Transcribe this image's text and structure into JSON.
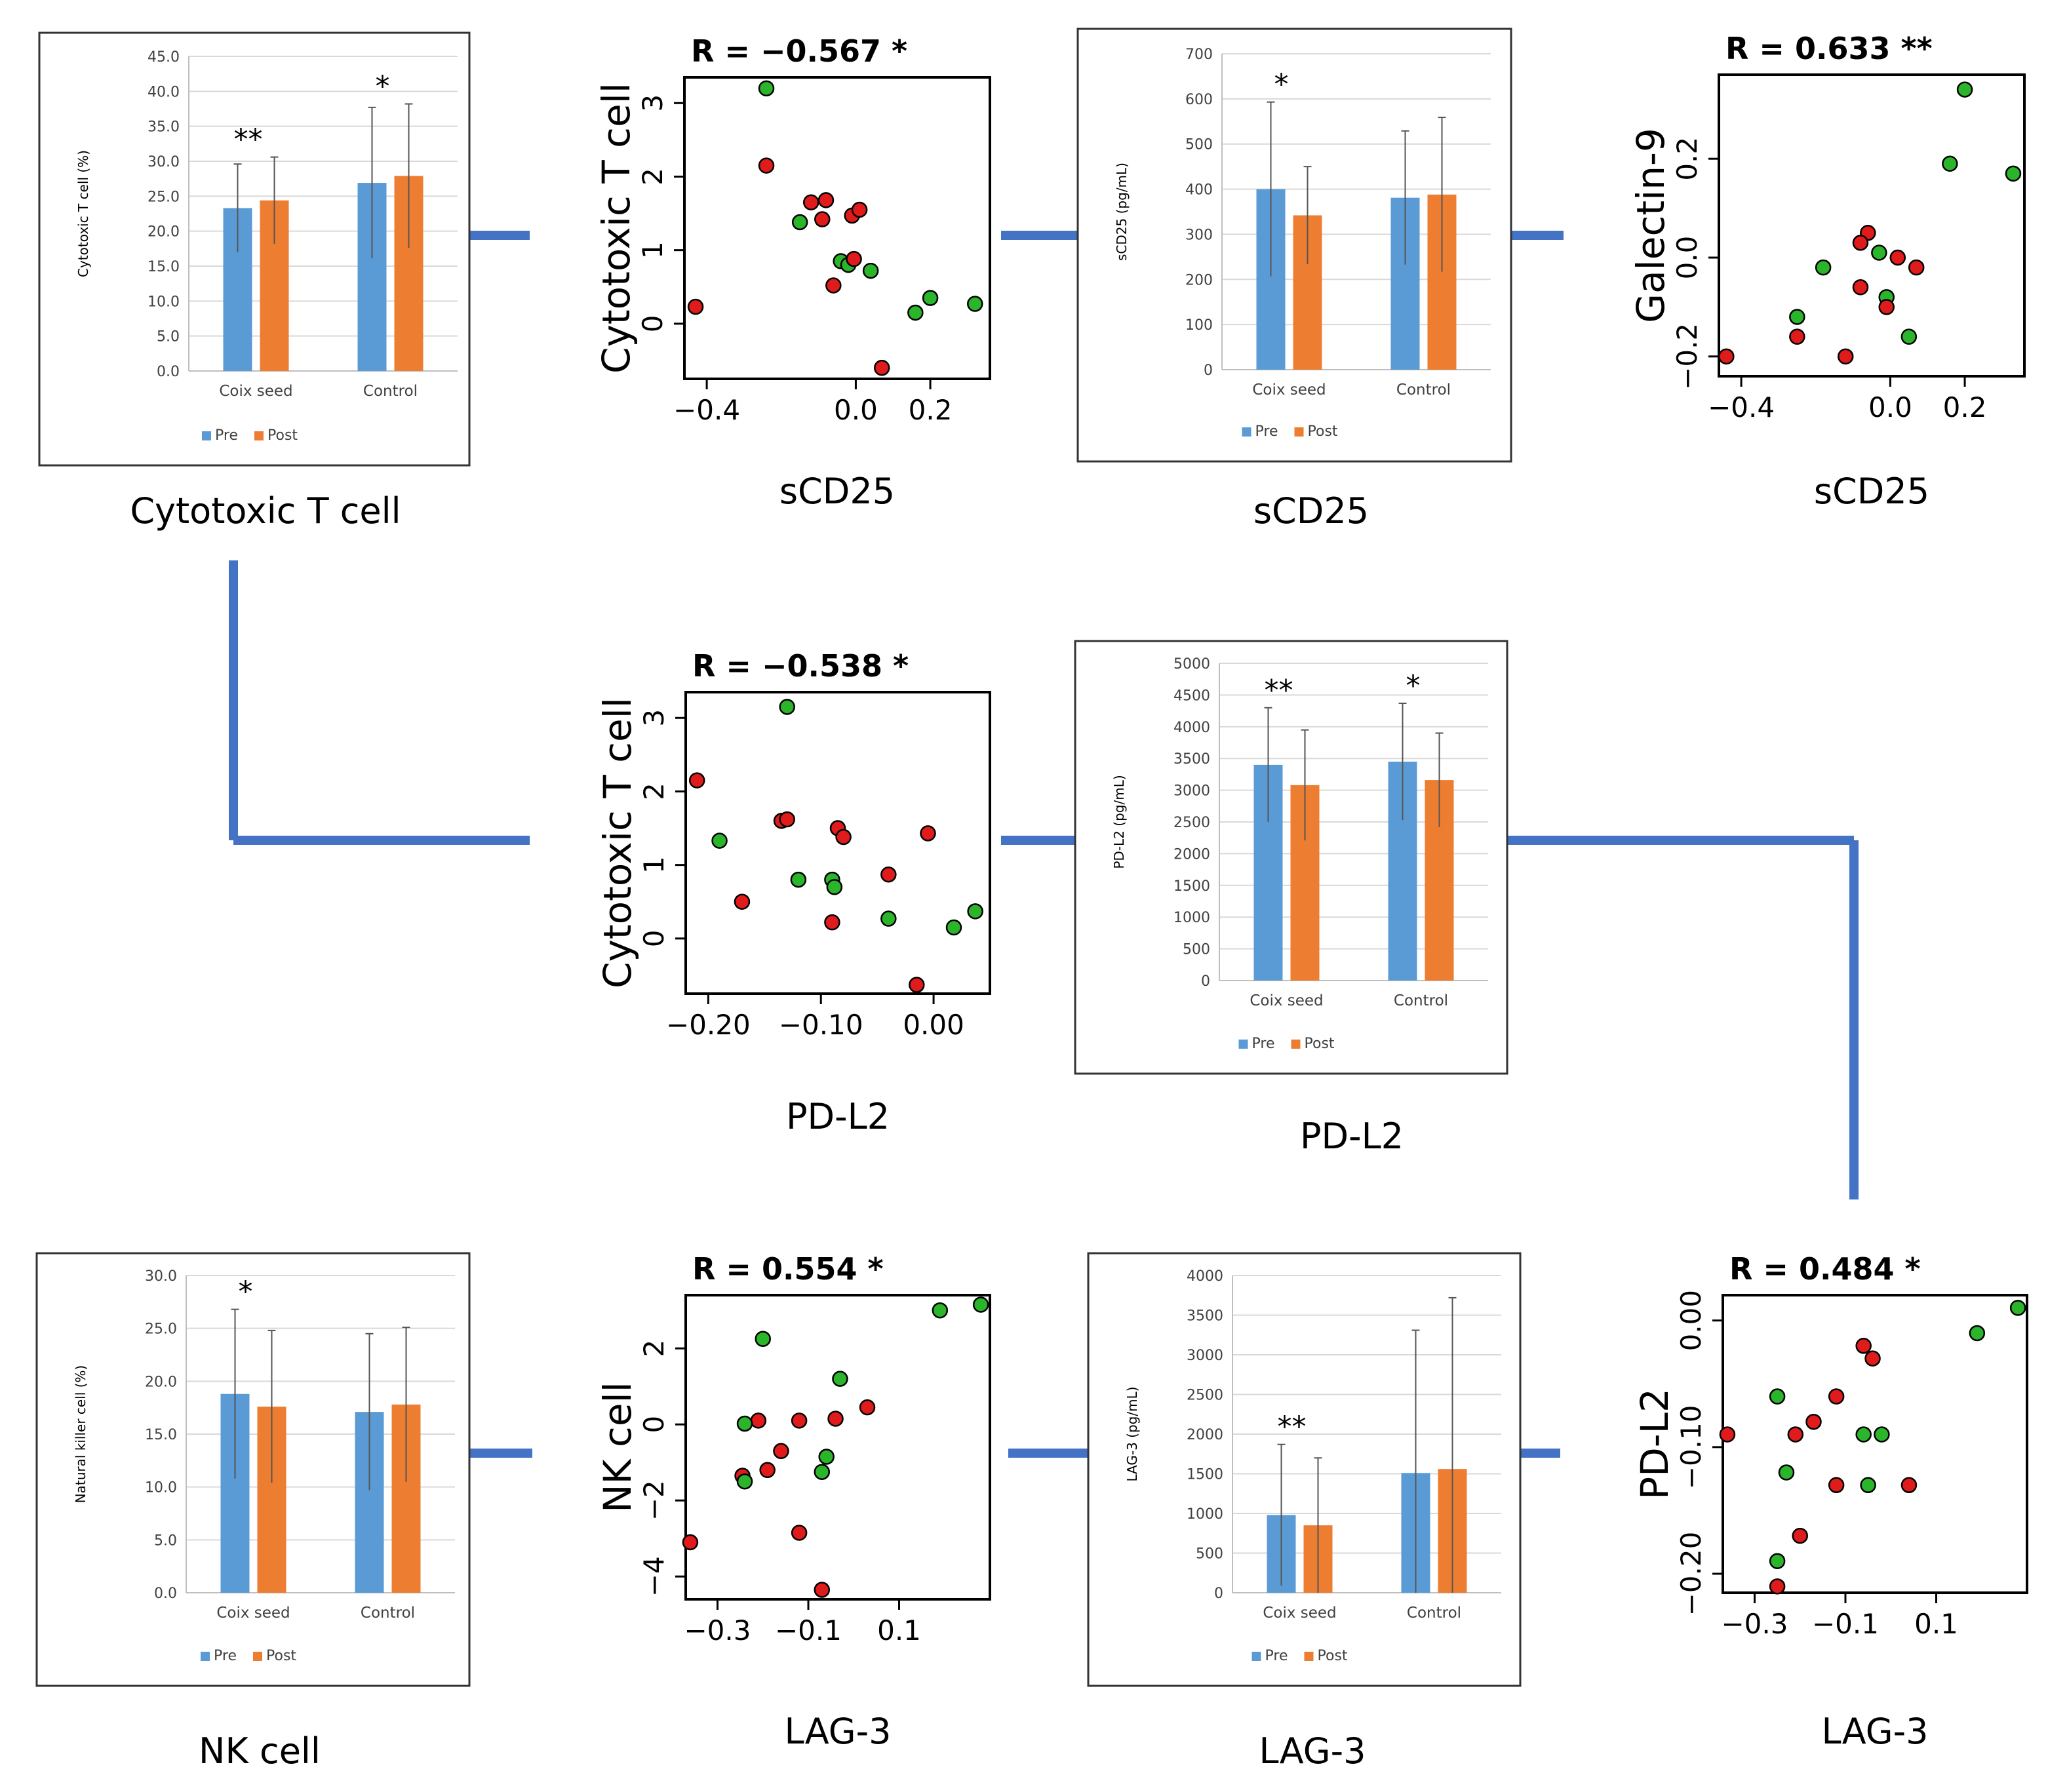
{
  "colors": {
    "connector": "#4472C4",
    "pre": "#5B9BD5",
    "post": "#ED7D31",
    "improved": "#2BB52B",
    "worsened": "#E01B1B",
    "gridline": "#D9D9D9",
    "border": "#333333"
  },
  "legend": {
    "pre": "Pre",
    "post": "Post"
  },
  "chart_data": [
    {
      "id": "bar-ctl",
      "type": "bar",
      "caption": "Cytotoxic T cell",
      "ylabel": "Cytotoxic T cell (%)",
      "categories": [
        "Coix seed",
        "Control"
      ],
      "ylim": [
        0,
        45
      ],
      "ticks": [
        "0.0",
        "5.0",
        "10.0",
        "15.0",
        "20.0",
        "25.0",
        "30.0",
        "35.0",
        "40.0",
        "45.0"
      ],
      "series": [
        {
          "name": "Pre",
          "values": [
            23.3,
            26.9
          ],
          "err": [
            6.3,
            10.8
          ]
        },
        {
          "name": "Post",
          "values": [
            24.4,
            27.9
          ],
          "err": [
            6.2,
            10.3
          ]
        }
      ],
      "significance": [
        "**",
        "*"
      ]
    },
    {
      "id": "scat-ctl-scd25",
      "type": "scatter",
      "title": "R = −0.567 *",
      "xlabel": "sCD25",
      "ylabel": "Cytotoxic T cell",
      "xlim": [
        -0.46,
        0.36
      ],
      "ylim": [
        -0.75,
        3.35
      ],
      "xticks": [
        "-0.4",
        "0.0",
        "0.2"
      ],
      "yticks": [
        "0",
        "1",
        "2",
        "3"
      ],
      "points": [
        {
          "x": -0.24,
          "y": 3.2,
          "g": 1
        },
        {
          "x": -0.24,
          "y": 2.15,
          "g": 0
        },
        {
          "x": -0.12,
          "y": 1.65,
          "g": 0
        },
        {
          "x": -0.08,
          "y": 1.68,
          "g": 0
        },
        {
          "x": -0.09,
          "y": 1.42,
          "g": 0
        },
        {
          "x": -0.15,
          "y": 1.38,
          "g": 1
        },
        {
          "x": -0.01,
          "y": 1.47,
          "g": 0
        },
        {
          "x": 0.01,
          "y": 1.55,
          "g": 0
        },
        {
          "x": -0.04,
          "y": 0.85,
          "g": 1
        },
        {
          "x": -0.02,
          "y": 0.8,
          "g": 1
        },
        {
          "x": -0.005,
          "y": 0.88,
          "g": 0
        },
        {
          "x": -0.06,
          "y": 0.52,
          "g": 0
        },
        {
          "x": 0.04,
          "y": 0.72,
          "g": 1
        },
        {
          "x": 0.16,
          "y": 0.15,
          "g": 1
        },
        {
          "x": 0.2,
          "y": 0.35,
          "g": 1
        },
        {
          "x": 0.32,
          "y": 0.27,
          "g": 1
        },
        {
          "x": 0.07,
          "y": -0.6,
          "g": 0
        },
        {
          "x": -0.43,
          "y": 0.23,
          "g": 0
        }
      ]
    },
    {
      "id": "bar-scd25",
      "type": "bar",
      "caption": "sCD25",
      "ylabel": "sCD25 (pg/mL)",
      "categories": [
        "Coix seed",
        "Control"
      ],
      "ylim": [
        0,
        700
      ],
      "ticks": [
        "0",
        "100",
        "200",
        "300",
        "400",
        "500",
        "600",
        "700"
      ],
      "series": [
        {
          "name": "Pre",
          "values": [
            400,
            381
          ],
          "err": [
            193,
            148
          ]
        },
        {
          "name": "Post",
          "values": [
            342,
            388
          ],
          "err": [
            108,
            171
          ]
        }
      ],
      "significance": [
        "*",
        ""
      ]
    },
    {
      "id": "scat-gal9-scd25",
      "type": "scatter",
      "title": "R = 0.633 **",
      "xlabel": "sCD25",
      "ylabel": "Galectin-9",
      "xlim": [
        -0.46,
        0.36
      ],
      "ylim": [
        -0.24,
        0.37
      ],
      "xticks": [
        "-0.4",
        "0.0",
        "0.2"
      ],
      "yticks": [
        "-0.2",
        "0.0",
        "0.2"
      ],
      "points": [
        {
          "x": 0.2,
          "y": 0.34,
          "g": 1
        },
        {
          "x": 0.16,
          "y": 0.19,
          "g": 1
        },
        {
          "x": 0.33,
          "y": 0.17,
          "g": 1
        },
        {
          "x": -0.06,
          "y": 0.05,
          "g": 0
        },
        {
          "x": -0.08,
          "y": 0.03,
          "g": 0
        },
        {
          "x": -0.03,
          "y": 0.01,
          "g": 1
        },
        {
          "x": 0.02,
          "y": 0.0,
          "g": 0
        },
        {
          "x": 0.07,
          "y": -0.02,
          "g": 0
        },
        {
          "x": -0.18,
          "y": -0.02,
          "g": 1
        },
        {
          "x": -0.08,
          "y": -0.06,
          "g": 0
        },
        {
          "x": -0.01,
          "y": -0.08,
          "g": 1
        },
        {
          "x": -0.01,
          "y": -0.1,
          "g": 0
        },
        {
          "x": -0.25,
          "y": -0.12,
          "g": 1
        },
        {
          "x": 0.05,
          "y": -0.16,
          "g": 1
        },
        {
          "x": -0.25,
          "y": -0.16,
          "g": 0
        },
        {
          "x": -0.12,
          "y": -0.2,
          "g": 0
        },
        {
          "x": -0.44,
          "y": -0.2,
          "g": 0
        }
      ]
    },
    {
      "id": "scat-ctl-pdl2",
      "type": "scatter",
      "title": "R = −0.538 *",
      "xlabel": "PD-L2",
      "ylabel": "Cytotoxic T cell",
      "xlim": [
        -0.22,
        0.05
      ],
      "ylim": [
        -0.75,
        3.35
      ],
      "xticks": [
        "-0.20",
        "-0.10",
        "0.00"
      ],
      "yticks": [
        "0",
        "1",
        "2",
        "3"
      ],
      "points": [
        {
          "x": -0.13,
          "y": 3.15,
          "g": 1
        },
        {
          "x": -0.21,
          "y": 2.15,
          "g": 0
        },
        {
          "x": -0.135,
          "y": 1.6,
          "g": 0
        },
        {
          "x": -0.13,
          "y": 1.62,
          "g": 0
        },
        {
          "x": -0.085,
          "y": 1.5,
          "g": 0
        },
        {
          "x": -0.08,
          "y": 1.38,
          "g": 0
        },
        {
          "x": -0.005,
          "y": 1.43,
          "g": 0
        },
        {
          "x": -0.19,
          "y": 1.33,
          "g": 1
        },
        {
          "x": -0.12,
          "y": 0.8,
          "g": 1
        },
        {
          "x": -0.09,
          "y": 0.8,
          "g": 1
        },
        {
          "x": -0.088,
          "y": 0.7,
          "g": 1
        },
        {
          "x": -0.04,
          "y": 0.87,
          "g": 0
        },
        {
          "x": -0.17,
          "y": 0.5,
          "g": 0
        },
        {
          "x": -0.09,
          "y": 0.22,
          "g": 0
        },
        {
          "x": -0.04,
          "y": 0.27,
          "g": 1
        },
        {
          "x": 0.037,
          "y": 0.37,
          "g": 1
        },
        {
          "x": 0.018,
          "y": 0.15,
          "g": 1
        },
        {
          "x": -0.015,
          "y": -0.63,
          "g": 0
        }
      ]
    },
    {
      "id": "bar-pdl2",
      "type": "bar",
      "caption": "PD-L2",
      "ylabel": "PD-L2 (pg/mL)",
      "categories": [
        "Coix seed",
        "Control"
      ],
      "ylim": [
        0,
        5000
      ],
      "ticks": [
        "0",
        "500",
        "1000",
        "1500",
        "2000",
        "2500",
        "3000",
        "3500",
        "4000",
        "4500",
        "5000"
      ],
      "series": [
        {
          "name": "Pre",
          "values": [
            3400,
            3450
          ],
          "err": [
            900,
            920
          ]
        },
        {
          "name": "Post",
          "values": [
            3080,
            3160
          ],
          "err": [
            870,
            740
          ]
        }
      ],
      "significance": [
        "**",
        "*"
      ]
    },
    {
      "id": "bar-nk",
      "type": "bar",
      "caption": "NK cell",
      "ylabel": "Natural killer cell (%)",
      "categories": [
        "Coix seed",
        "Control"
      ],
      "ylim": [
        0,
        30
      ],
      "ticks": [
        "0.0",
        "5.0",
        "10.0",
        "15.0",
        "20.0",
        "25.0",
        "30.0"
      ],
      "series": [
        {
          "name": "Pre",
          "values": [
            18.8,
            17.1
          ],
          "err": [
            8.0,
            7.4
          ]
        },
        {
          "name": "Post",
          "values": [
            17.6,
            17.8
          ],
          "err": [
            7.2,
            7.3
          ]
        }
      ],
      "significance": [
        "*",
        ""
      ]
    },
    {
      "id": "scat-nk-lag3",
      "type": "scatter",
      "title": "R = 0.554 *",
      "xlabel": "LAG-3",
      "ylabel": "NK cell",
      "xlim": [
        -0.37,
        0.3
      ],
      "ylim": [
        -4.6,
        3.4
      ],
      "xticks": [
        "-0.3",
        "-0.1",
        "0.1"
      ],
      "yticks": [
        "-4",
        "-2",
        "0",
        "2"
      ],
      "points": [
        {
          "x": 0.19,
          "y": 3.0,
          "g": 1
        },
        {
          "x": 0.28,
          "y": 3.15,
          "g": 1
        },
        {
          "x": -0.2,
          "y": 2.25,
          "g": 1
        },
        {
          "x": -0.03,
          "y": 1.2,
          "g": 1
        },
        {
          "x": 0.03,
          "y": 0.45,
          "g": 0
        },
        {
          "x": -0.04,
          "y": 0.15,
          "g": 0
        },
        {
          "x": -0.12,
          "y": 0.1,
          "g": 0
        },
        {
          "x": -0.21,
          "y": 0.1,
          "g": 0
        },
        {
          "x": -0.24,
          "y": 0.02,
          "g": 1
        },
        {
          "x": -0.16,
          "y": -0.7,
          "g": 0
        },
        {
          "x": -0.06,
          "y": -0.85,
          "g": 1
        },
        {
          "x": -0.19,
          "y": -1.2,
          "g": 0
        },
        {
          "x": -0.07,
          "y": -1.25,
          "g": 1
        },
        {
          "x": -0.245,
          "y": -1.35,
          "g": 0
        },
        {
          "x": -0.24,
          "y": -1.5,
          "g": 1
        },
        {
          "x": -0.12,
          "y": -2.85,
          "g": 0
        },
        {
          "x": -0.36,
          "y": -3.1,
          "g": 0
        },
        {
          "x": -0.07,
          "y": -4.35,
          "g": 0
        }
      ]
    },
    {
      "id": "bar-lag3",
      "type": "bar",
      "caption": "LAG-3",
      "ylabel": "LAG-3 (pg/mL)",
      "categories": [
        "Coix seed",
        "Control"
      ],
      "ylim": [
        0,
        4000
      ],
      "ticks": [
        "0",
        "500",
        "1000",
        "1500",
        "2000",
        "2500",
        "3000",
        "3500",
        "4000"
      ],
      "series": [
        {
          "name": "Pre",
          "values": [
            980,
            1510
          ],
          "err": [
            890,
            1800
          ]
        },
        {
          "name": "Post",
          "values": [
            850,
            1560
          ],
          "err": [
            850,
            2160
          ]
        }
      ],
      "significance": [
        "**",
        ""
      ]
    },
    {
      "id": "scat-pdl2-lag3",
      "type": "scatter",
      "title": "R = 0.484 *",
      "xlabel": "LAG-3",
      "ylabel": "PD-L2",
      "xlim": [
        -0.37,
        0.3
      ],
      "ylim": [
        -0.215,
        0.02
      ],
      "xticks": [
        "-0.3",
        "-0.1",
        "0.1"
      ],
      "yticks": [
        "-0.20",
        "-0.10",
        "0.00"
      ],
      "points": [
        {
          "x": 0.28,
          "y": 0.01,
          "g": 1
        },
        {
          "x": 0.19,
          "y": -0.01,
          "g": 1
        },
        {
          "x": -0.06,
          "y": -0.02,
          "g": 0
        },
        {
          "x": -0.04,
          "y": -0.03,
          "g": 0
        },
        {
          "x": -0.25,
          "y": -0.06,
          "g": 1
        },
        {
          "x": -0.12,
          "y": -0.06,
          "g": 0
        },
        {
          "x": -0.17,
          "y": -0.08,
          "g": 0
        },
        {
          "x": -0.21,
          "y": -0.09,
          "g": 0
        },
        {
          "x": -0.06,
          "y": -0.09,
          "g": 1
        },
        {
          "x": -0.02,
          "y": -0.09,
          "g": 1
        },
        {
          "x": -0.36,
          "y": -0.09,
          "g": 0
        },
        {
          "x": -0.23,
          "y": -0.12,
          "g": 1
        },
        {
          "x": -0.12,
          "y": -0.13,
          "g": 0
        },
        {
          "x": -0.05,
          "y": -0.13,
          "g": 1
        },
        {
          "x": 0.04,
          "y": -0.13,
          "g": 0
        },
        {
          "x": -0.2,
          "y": -0.17,
          "g": 0
        },
        {
          "x": -0.25,
          "y": -0.19,
          "g": 1
        },
        {
          "x": -0.25,
          "y": -0.21,
          "g": 0
        }
      ]
    }
  ]
}
